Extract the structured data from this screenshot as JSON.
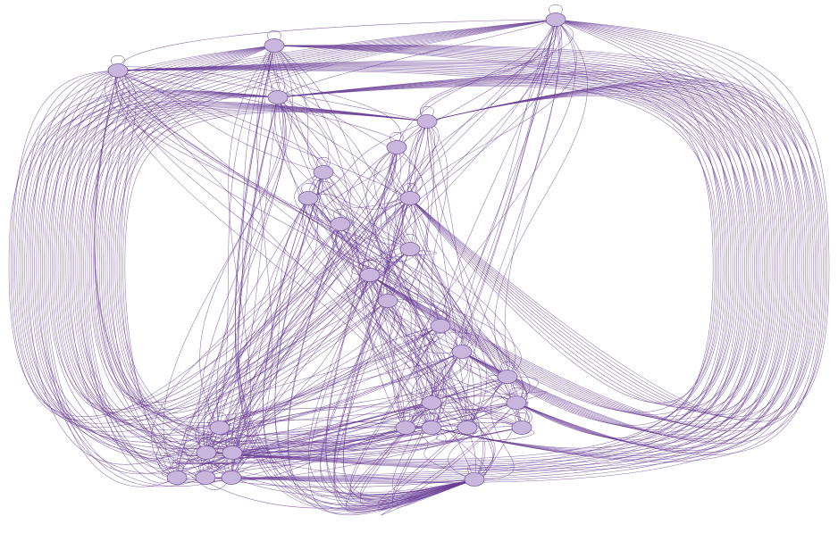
{
  "diagram": {
    "type": "directed-graph",
    "colors": {
      "edge": "#6a3f96",
      "node_fill": "#c8b6dc",
      "node_stroke": "#7a5aa3",
      "background": "#ffffff"
    },
    "nodes": [
      {
        "id": "n1"
      },
      {
        "id": "n2"
      },
      {
        "id": "n3"
      },
      {
        "id": "n4"
      },
      {
        "id": "n5"
      },
      {
        "id": "n6"
      },
      {
        "id": "n7"
      },
      {
        "id": "n8"
      },
      {
        "id": "n9"
      },
      {
        "id": "n10"
      },
      {
        "id": "n11"
      },
      {
        "id": "n12"
      },
      {
        "id": "n13"
      },
      {
        "id": "n14"
      },
      {
        "id": "n15"
      },
      {
        "id": "n16"
      },
      {
        "id": "n17"
      },
      {
        "id": "n18"
      },
      {
        "id": "n19"
      },
      {
        "id": "n20"
      },
      {
        "id": "n21"
      },
      {
        "id": "n22"
      },
      {
        "id": "n23"
      },
      {
        "id": "n24"
      },
      {
        "id": "n25"
      },
      {
        "id": "n26"
      },
      {
        "id": "n27"
      },
      {
        "id": "n28"
      },
      {
        "id": "n29"
      }
    ],
    "edge_label_note": ""
  }
}
